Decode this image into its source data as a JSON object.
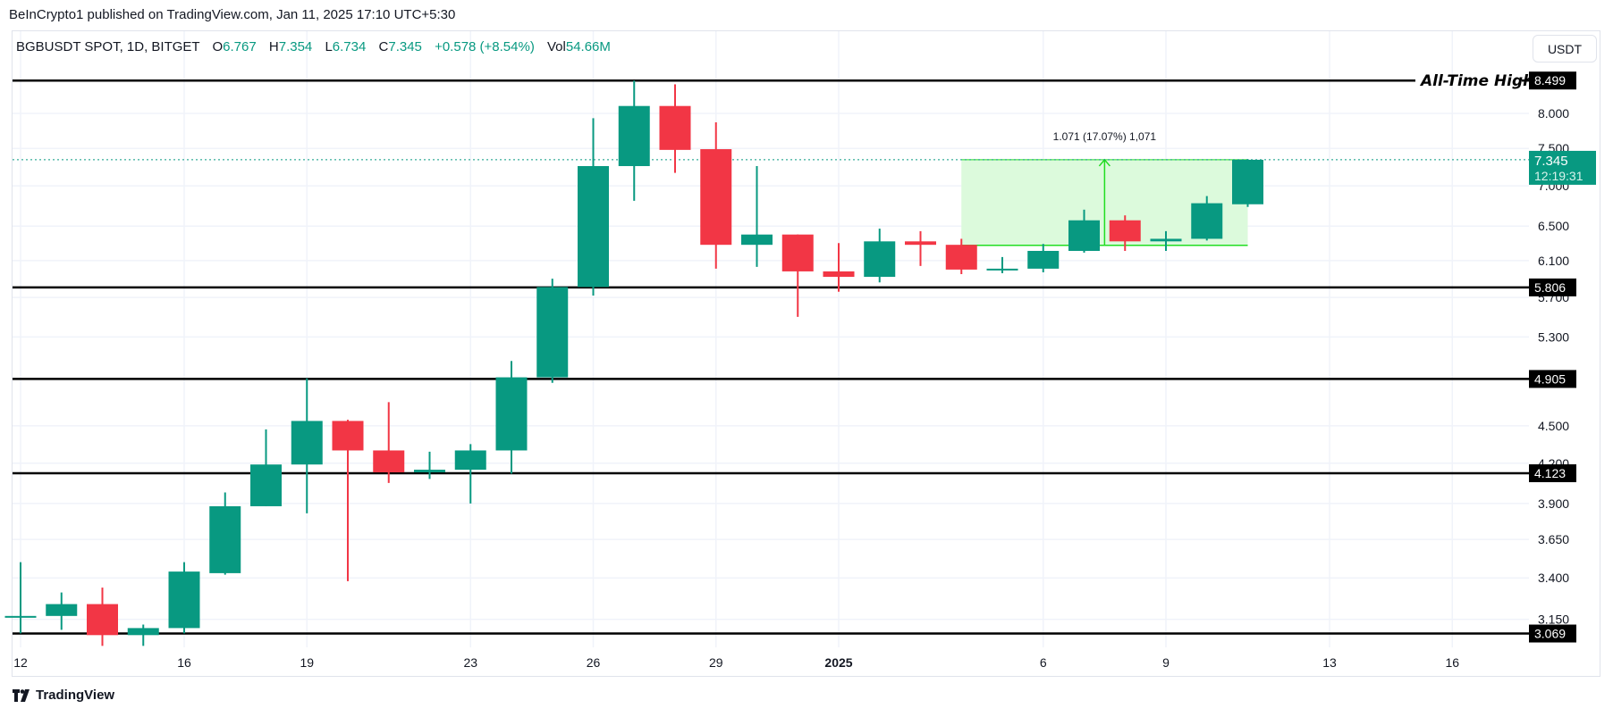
{
  "publisher_line": "BeInCrypto1 published on TradingView.com, Jan 11, 2025 17:10 UTC+5:30",
  "legend": {
    "symbol": "BGBUSDT SPOT, 1D, BITGET",
    "o_label": "O",
    "o": "6.767",
    "h_label": "H",
    "h": "7.354",
    "l_label": "L",
    "l": "6.734",
    "c_label": "C",
    "c": "7.345",
    "change": "+0.578 (+8.54%)",
    "vol_label": "Vol",
    "vol": "54.66M"
  },
  "currency_button": "USDT",
  "brand": "TradingView",
  "colors": {
    "up": "#089981",
    "down": "#f23645",
    "level": "#000000",
    "measure_fill": "#dcfadc",
    "measure_line": "#22dd22",
    "grid": "#f0f3fa"
  },
  "chart_data": {
    "type": "candlestick",
    "scale": "log",
    "ylim": [
      2.99,
      9.32
    ],
    "grid": true,
    "y_ticks": [
      "8.000",
      "7.500",
      "7.000",
      "6.500",
      "6.100",
      "5.700",
      "5.300",
      "4.500",
      "4.200",
      "3.900",
      "3.650",
      "3.400",
      "3.150"
    ],
    "x_ticks": [
      {
        "label": "12",
        "date": "2024-12-12"
      },
      {
        "label": "16",
        "date": "2024-12-16"
      },
      {
        "label": "19",
        "date": "2024-12-19"
      },
      {
        "label": "23",
        "date": "2024-12-23"
      },
      {
        "label": "26",
        "date": "2024-12-26"
      },
      {
        "label": "29",
        "date": "2024-12-29"
      },
      {
        "label": "2025",
        "date": "2025-01-01",
        "bold": true
      },
      {
        "label": "6",
        "date": "2025-01-06"
      },
      {
        "label": "9",
        "date": "2025-01-09"
      },
      {
        "label": "13",
        "date": "2025-01-13"
      },
      {
        "label": "16",
        "date": "2025-01-16"
      }
    ],
    "x_range": [
      "2024-12-12",
      "2025-01-18"
    ],
    "candles": [
      {
        "date": "2024-12-12",
        "o": 3.17,
        "h": 3.5,
        "l": 3.07,
        "c": 3.17
      },
      {
        "date": "2024-12-13",
        "o": 3.17,
        "h": 3.31,
        "l": 3.09,
        "c": 3.24
      },
      {
        "date": "2024-12-14",
        "o": 3.24,
        "h": 3.34,
        "l": 3.0,
        "c": 3.06
      },
      {
        "date": "2024-12-15",
        "o": 3.06,
        "h": 3.12,
        "l": 3.0,
        "c": 3.1
      },
      {
        "date": "2024-12-16",
        "o": 3.1,
        "h": 3.5,
        "l": 3.07,
        "c": 3.44
      },
      {
        "date": "2024-12-17",
        "o": 3.43,
        "h": 3.98,
        "l": 3.42,
        "c": 3.88
      },
      {
        "date": "2024-12-18",
        "o": 3.88,
        "h": 4.47,
        "l": 3.88,
        "c": 4.19
      },
      {
        "date": "2024-12-19",
        "o": 4.19,
        "h": 4.91,
        "l": 3.83,
        "c": 4.54
      },
      {
        "date": "2024-12-20",
        "o": 4.54,
        "h": 4.55,
        "l": 3.38,
        "c": 4.3
      },
      {
        "date": "2024-12-21",
        "o": 4.3,
        "h": 4.7,
        "l": 4.05,
        "c": 4.13
      },
      {
        "date": "2024-12-22",
        "o": 4.13,
        "h": 4.29,
        "l": 4.08,
        "c": 4.15
      },
      {
        "date": "2024-12-23",
        "o": 4.15,
        "h": 4.35,
        "l": 3.9,
        "c": 4.3
      },
      {
        "date": "2024-12-24",
        "o": 4.3,
        "h": 5.07,
        "l": 4.12,
        "c": 4.92
      },
      {
        "date": "2024-12-25",
        "o": 4.92,
        "h": 5.9,
        "l": 4.87,
        "c": 5.81
      },
      {
        "date": "2024-12-26",
        "o": 5.81,
        "h": 7.93,
        "l": 5.72,
        "c": 7.26
      },
      {
        "date": "2024-12-27",
        "o": 7.26,
        "h": 8.5,
        "l": 6.81,
        "c": 8.11
      },
      {
        "date": "2024-12-28",
        "o": 8.11,
        "h": 8.44,
        "l": 7.17,
        "c": 7.48
      },
      {
        "date": "2024-12-29",
        "o": 7.49,
        "h": 7.87,
        "l": 6.01,
        "c": 6.28
      },
      {
        "date": "2024-12-30",
        "o": 6.28,
        "h": 7.26,
        "l": 6.03,
        "c": 6.4
      },
      {
        "date": "2024-12-31",
        "o": 6.4,
        "h": 6.4,
        "l": 5.5,
        "c": 5.98
      },
      {
        "date": "2025-01-01",
        "o": 5.98,
        "h": 6.3,
        "l": 5.76,
        "c": 5.92
      },
      {
        "date": "2025-01-02",
        "o": 5.92,
        "h": 6.47,
        "l": 5.86,
        "c": 6.32
      },
      {
        "date": "2025-01-03",
        "o": 6.32,
        "h": 6.44,
        "l": 6.04,
        "c": 6.28
      },
      {
        "date": "2025-01-04",
        "o": 6.28,
        "h": 6.35,
        "l": 5.95,
        "c": 6.0
      },
      {
        "date": "2025-01-05",
        "o": 6.0,
        "h": 6.14,
        "l": 5.96,
        "c": 6.01
      },
      {
        "date": "2025-01-06",
        "o": 6.01,
        "h": 6.29,
        "l": 5.97,
        "c": 6.21
      },
      {
        "date": "2025-01-07",
        "o": 6.21,
        "h": 6.7,
        "l": 6.19,
        "c": 6.57
      },
      {
        "date": "2025-01-08",
        "o": 6.57,
        "h": 6.63,
        "l": 6.21,
        "c": 6.32
      },
      {
        "date": "2025-01-09",
        "o": 6.32,
        "h": 6.44,
        "l": 6.21,
        "c": 6.35
      },
      {
        "date": "2025-01-10",
        "o": 6.35,
        "h": 6.87,
        "l": 6.33,
        "c": 6.78
      },
      {
        "date": "2025-01-11",
        "o": 6.767,
        "h": 7.354,
        "l": 6.734,
        "c": 7.345
      }
    ],
    "levels": [
      {
        "price": 8.499,
        "label": "8.499",
        "annotation": "All-Time High"
      },
      {
        "price": 5.806,
        "label": "5.806"
      },
      {
        "price": 4.905,
        "label": "4.905"
      },
      {
        "price": 4.123,
        "label": "4.123"
      },
      {
        "price": 3.069,
        "label": "3.069"
      }
    ],
    "last_price": {
      "price": 7.345,
      "label": "7.345",
      "countdown": "12:19:31"
    },
    "measure": {
      "from_date": "2025-01-04",
      "to_date": "2025-01-11",
      "low": 6.274,
      "high": 7.345,
      "label": "1.071 (17.07%) 1,071"
    }
  }
}
